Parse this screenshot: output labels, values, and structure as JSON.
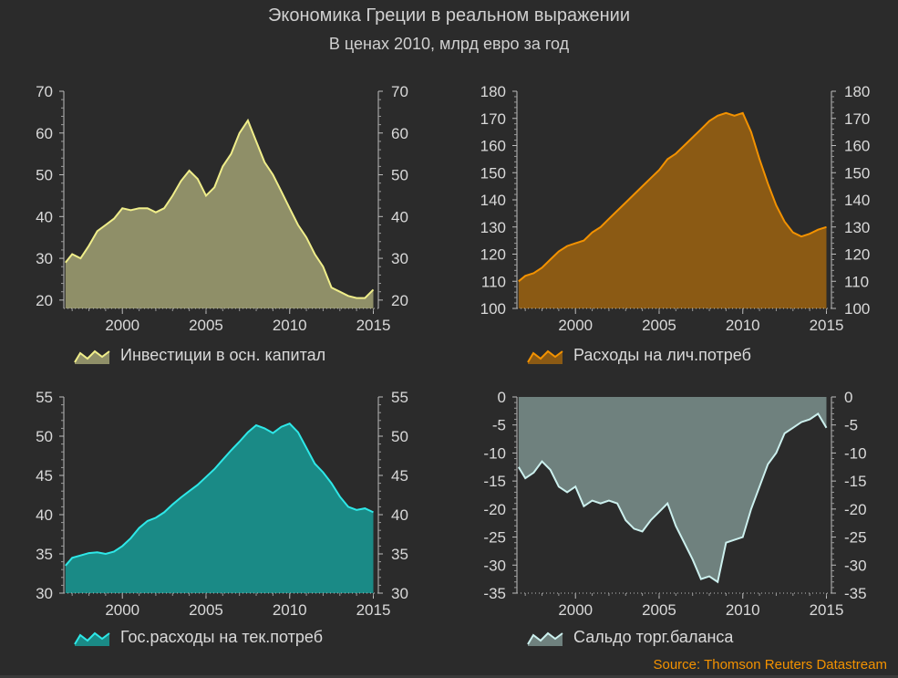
{
  "title": "Экономика Греции в реальном выражении",
  "subtitle": "В ценах 2010, млрд евро за год",
  "source": "Source: Thomson Reuters Datastream",
  "chart_data": [
    {
      "type": "area",
      "legend": "Инвестиции в осн. капитал",
      "color": "#f0ee8a",
      "fill": "#8f8f68",
      "xlim": [
        1996.5,
        2015.3
      ],
      "ylim": [
        18,
        70
      ],
      "yticks": [
        20,
        30,
        40,
        50,
        60,
        70
      ],
      "xticks": [
        2000,
        2005,
        2010,
        2015
      ],
      "x": [
        1996.6,
        1997.0,
        1997.5,
        1998.0,
        1998.5,
        1999.0,
        1999.5,
        2000.0,
        2000.5,
        2001.0,
        2001.5,
        2002.0,
        2002.5,
        2003.0,
        2003.5,
        2004.0,
        2004.5,
        2005.0,
        2005.5,
        2006.0,
        2006.5,
        2007.0,
        2007.5,
        2008.0,
        2008.5,
        2009.0,
        2009.5,
        2010.0,
        2010.5,
        2011.0,
        2011.5,
        2012.0,
        2012.5,
        2013.0,
        2013.5,
        2014.0,
        2014.5,
        2015.0
      ],
      "y": [
        29,
        31,
        30,
        33,
        36.5,
        38,
        39.5,
        42,
        41.5,
        42,
        42,
        41,
        42,
        45,
        48.5,
        51,
        49,
        45,
        47,
        52,
        55,
        60,
        63,
        58,
        53,
        50,
        46,
        42,
        38,
        35,
        31,
        28,
        23,
        22,
        21,
        20.5,
        20.5,
        22.5
      ]
    },
    {
      "type": "area",
      "legend": "Расходы на лич.потреб",
      "color": "#f39200",
      "fill": "#8b5a14",
      "xlim": [
        1996.5,
        2015.3
      ],
      "ylim": [
        100,
        180
      ],
      "yticks": [
        100,
        110,
        120,
        130,
        140,
        150,
        160,
        170,
        180
      ],
      "xticks": [
        2000,
        2005,
        2010,
        2015
      ],
      "x": [
        1996.6,
        1997.0,
        1997.5,
        1998.0,
        1998.5,
        1999.0,
        1999.5,
        2000.0,
        2000.5,
        2001.0,
        2001.5,
        2002.0,
        2002.5,
        2003.0,
        2003.5,
        2004.0,
        2004.5,
        2005.0,
        2005.5,
        2006.0,
        2006.5,
        2007.0,
        2007.5,
        2008.0,
        2008.5,
        2009.0,
        2009.5,
        2010.0,
        2010.5,
        2011.0,
        2011.5,
        2012.0,
        2012.5,
        2013.0,
        2013.5,
        2014.0,
        2014.5,
        2015.0
      ],
      "y": [
        110,
        112,
        113,
        115,
        118,
        121,
        123,
        124,
        125,
        128,
        130,
        133,
        136,
        139,
        142,
        145,
        148,
        151,
        155,
        157,
        160,
        163,
        166,
        169,
        171,
        172,
        171,
        172,
        165,
        155,
        146,
        138,
        132,
        128,
        126.5,
        127.5,
        129,
        130
      ]
    },
    {
      "type": "area",
      "legend": "Гос.расходы на тек.потреб",
      "color": "#2ee8e8",
      "fill": "#1a8a86",
      "xlim": [
        1996.5,
        2015.3
      ],
      "ylim": [
        30,
        55
      ],
      "yticks": [
        30,
        35,
        40,
        45,
        50,
        55
      ],
      "xticks": [
        2000,
        2005,
        2010,
        2015
      ],
      "x": [
        1996.6,
        1997.0,
        1997.5,
        1998.0,
        1998.5,
        1999.0,
        1999.5,
        2000.0,
        2000.5,
        2001.0,
        2001.5,
        2002.0,
        2002.5,
        2003.0,
        2003.5,
        2004.0,
        2004.5,
        2005.0,
        2005.5,
        2006.0,
        2006.5,
        2007.0,
        2007.5,
        2008.0,
        2008.5,
        2009.0,
        2009.5,
        2010.0,
        2010.5,
        2011.0,
        2011.5,
        2012.0,
        2012.5,
        2013.0,
        2013.5,
        2014.0,
        2014.5,
        2015.0
      ],
      "y": [
        33.5,
        34.5,
        34.8,
        35.1,
        35.2,
        35.0,
        35.3,
        36.0,
        37.0,
        38.3,
        39.2,
        39.6,
        40.3,
        41.3,
        42.2,
        43.0,
        43.8,
        44.8,
        45.8,
        47.0,
        48.2,
        49.3,
        50.5,
        51.4,
        51.0,
        50.4,
        51.2,
        51.6,
        50.5,
        48.5,
        46.5,
        45.4,
        44.0,
        42.3,
        41.0,
        40.6,
        40.8,
        40.3
      ]
    },
    {
      "type": "area",
      "legend": "Сальдо торг.баланса",
      "color": "#ccf0ee",
      "fill": "#6f817e",
      "xlim": [
        1996.5,
        2015.3
      ],
      "ylim": [
        -35,
        0
      ],
      "yticks": [
        0,
        -5,
        -10,
        -15,
        -20,
        -25,
        -30,
        -35
      ],
      "xticks": [
        2000,
        2005,
        2010,
        2015
      ],
      "x": [
        1996.6,
        1997.0,
        1997.5,
        1998.0,
        1998.5,
        1999.0,
        1999.5,
        2000.0,
        2000.5,
        2001.0,
        2001.5,
        2002.0,
        2002.5,
        2003.0,
        2003.5,
        2004.0,
        2004.5,
        2005.0,
        2005.5,
        2006.0,
        2006.5,
        2007.0,
        2007.5,
        2008.0,
        2008.5,
        2009.0,
        2009.5,
        2010.0,
        2010.5,
        2011.0,
        2011.5,
        2012.0,
        2012.5,
        2013.0,
        2013.5,
        2014.0,
        2014.5,
        2015.0
      ],
      "y": [
        -12.5,
        -14.5,
        -13.5,
        -11.5,
        -13.0,
        -16.0,
        -17.0,
        -16.0,
        -19.5,
        -18.5,
        -19.0,
        -18.5,
        -19.0,
        -22.0,
        -23.5,
        -24.0,
        -22.0,
        -20.5,
        -19.0,
        -23.0,
        -26.0,
        -29.0,
        -32.5,
        -32.0,
        -33.0,
        -26.0,
        -25.5,
        -25.0,
        -20.0,
        -16.0,
        -12.0,
        -10.0,
        -6.5,
        -5.5,
        -4.5,
        -4.0,
        -3.0,
        -5.5
      ]
    }
  ]
}
